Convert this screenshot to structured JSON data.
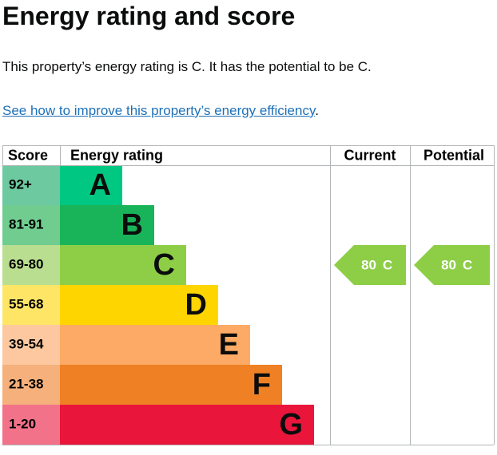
{
  "header": {
    "title": "Energy rating and score"
  },
  "intro": "This property’s energy rating is C. It has the potential to be C.",
  "link": {
    "text": "See how to improve this property’s energy efficiency",
    "after": "."
  },
  "table": {
    "columns": [
      "Score",
      "Energy rating",
      "Current",
      "Potential"
    ],
    "bands": [
      {
        "score": "92+",
        "letter": "A",
        "color": "#00c781",
        "score_color": "#6cc9a0"
      },
      {
        "score": "81-91",
        "letter": "B",
        "color": "#19b459",
        "score_color": "#70cc8f"
      },
      {
        "score": "69-80",
        "letter": "C",
        "color": "#8dce46",
        "score_color": "#bade8f"
      },
      {
        "score": "55-68",
        "letter": "D",
        "color": "#ffd500",
        "score_color": "#ffe566"
      },
      {
        "score": "39-54",
        "letter": "E",
        "color": "#fcaa65",
        "score_color": "#fdc89f"
      },
      {
        "score": "21-38",
        "letter": "F",
        "color": "#ef8023",
        "score_color": "#f5b07b"
      },
      {
        "score": "1-20",
        "letter": "G",
        "color": "#e9153b",
        "score_color": "#f27289"
      }
    ],
    "current": {
      "score": 80,
      "letter": "C"
    },
    "potential": {
      "score": 80,
      "letter": "C"
    }
  }
}
